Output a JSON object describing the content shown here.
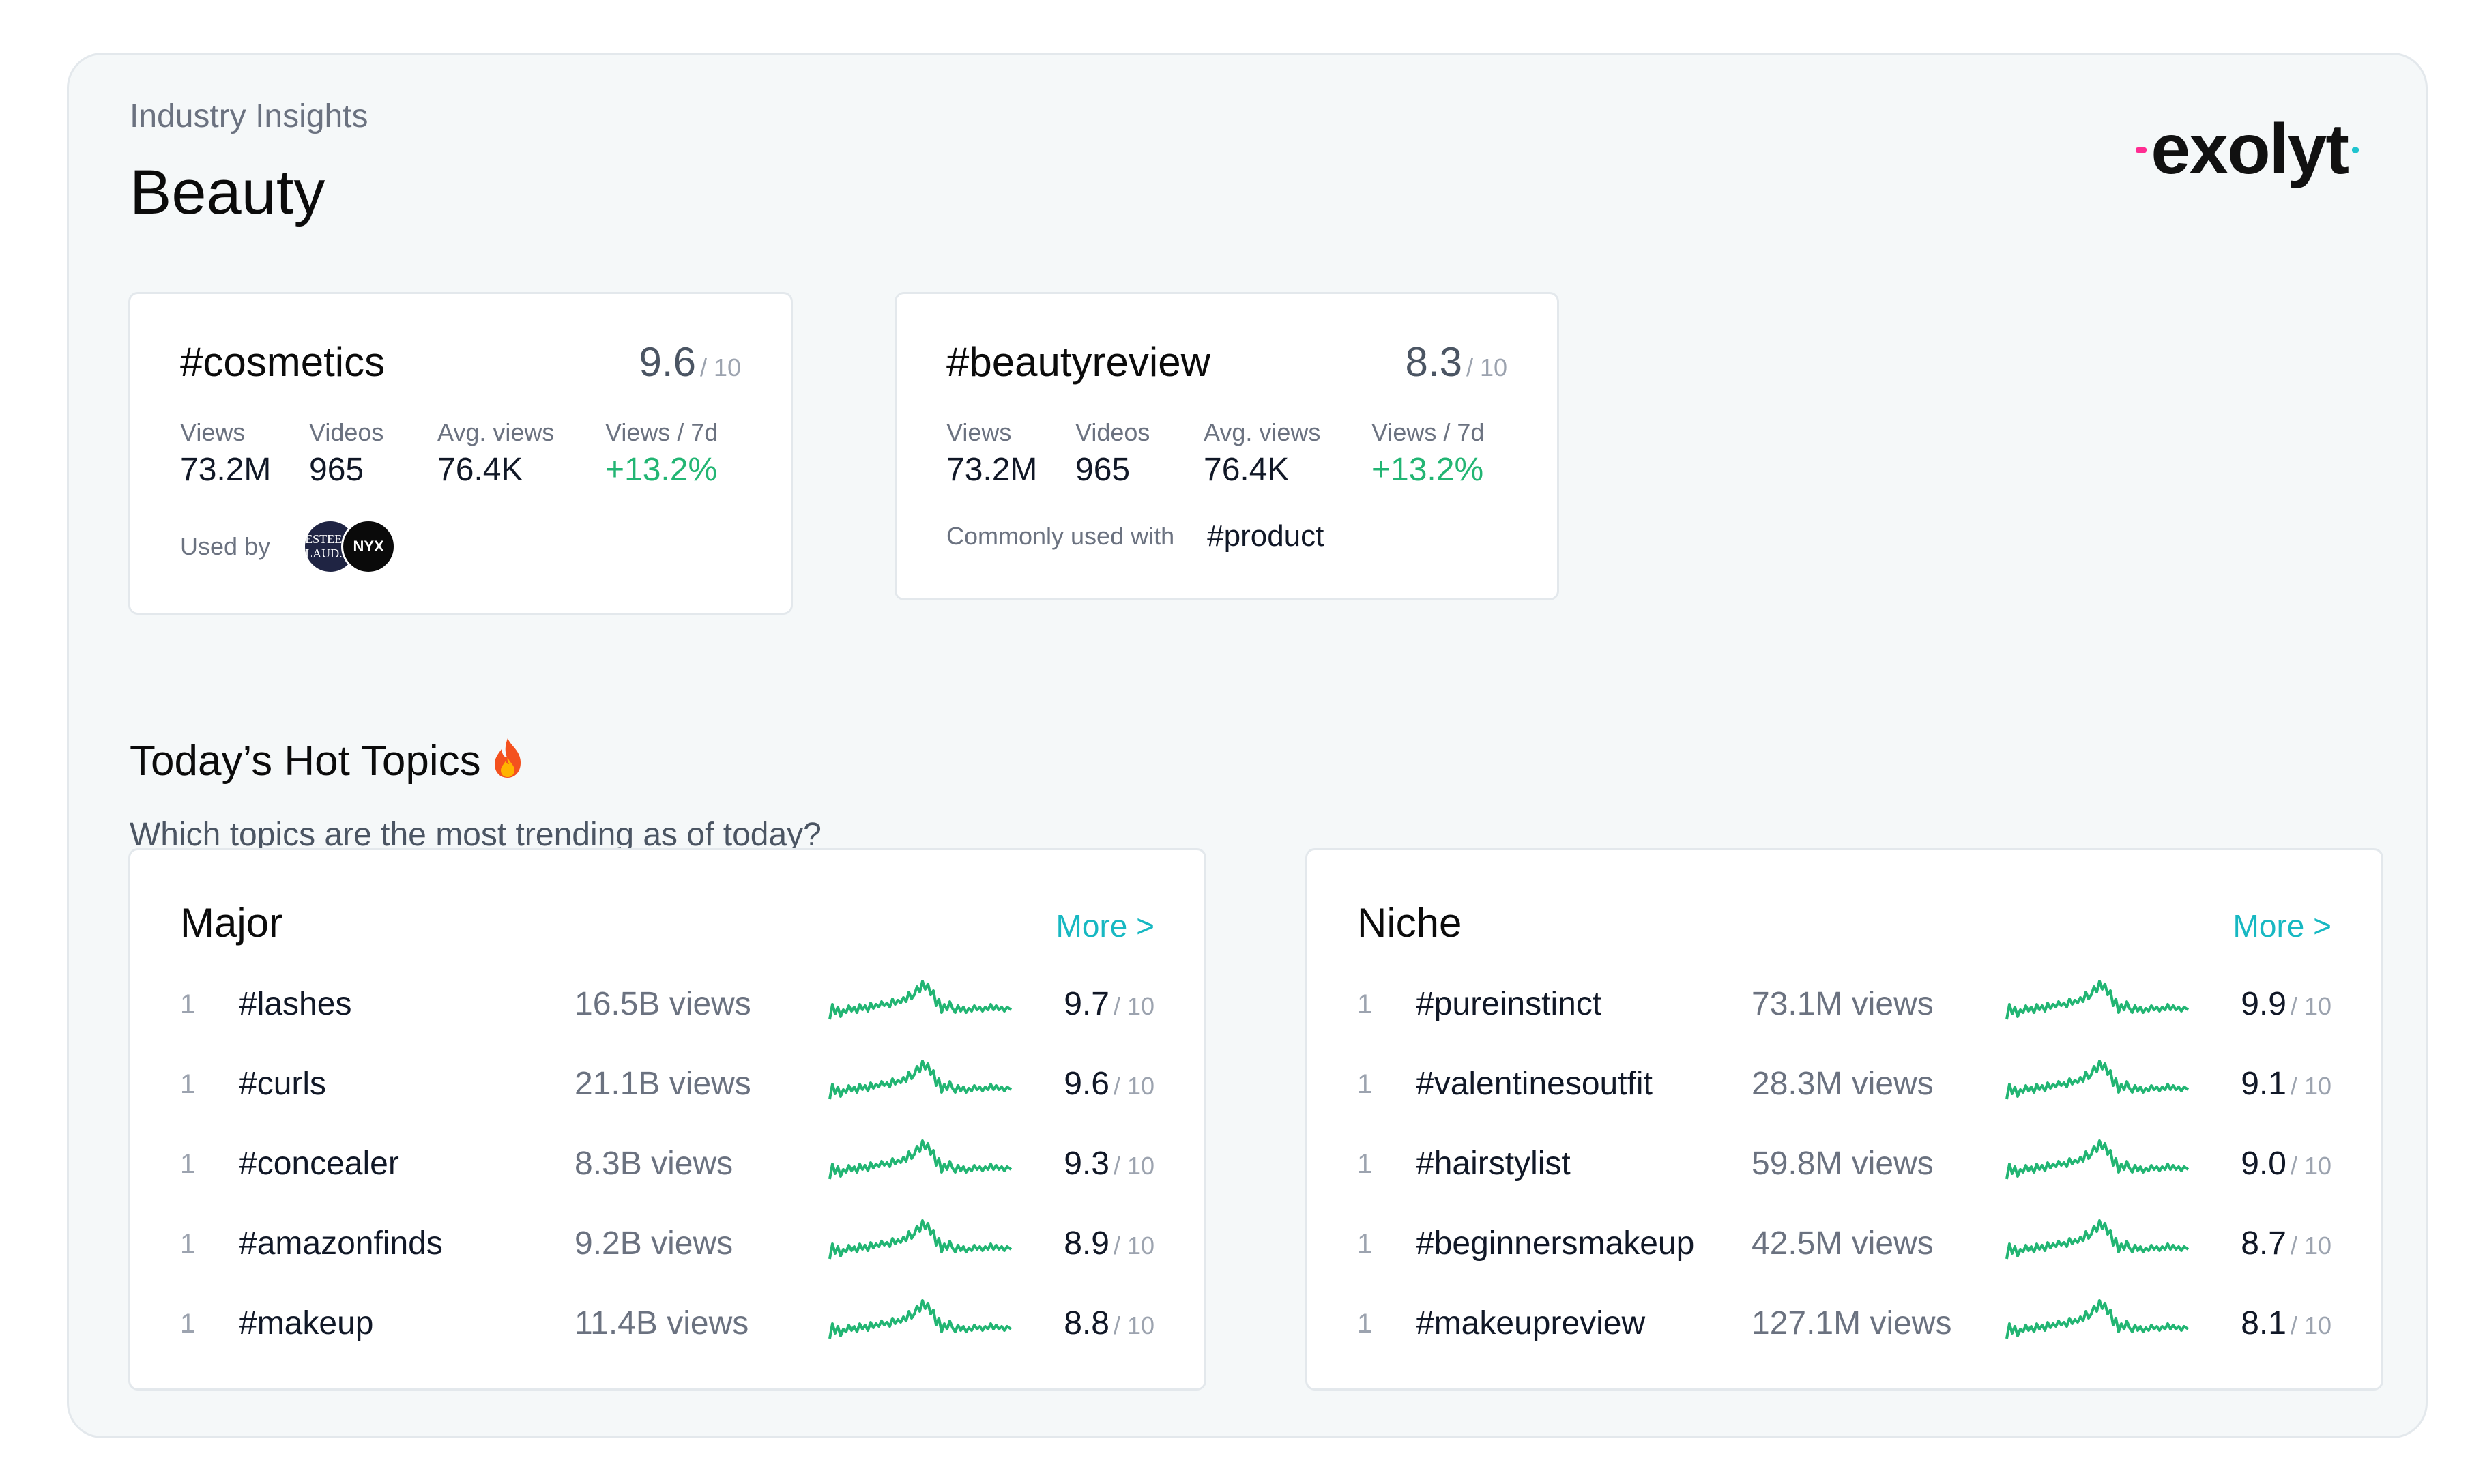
{
  "header": {
    "eyebrow": "Industry Insights",
    "title": "Beauty",
    "logo_text": "exolyt"
  },
  "featured": [
    {
      "tag": "#cosmetics",
      "score": "9.6",
      "score_den": "/ 10",
      "metrics": [
        {
          "label": "Views",
          "value": "73.2M"
        },
        {
          "label": "Videos",
          "value": "965"
        },
        {
          "label": "Avg. views",
          "value": "76.4K"
        },
        {
          "label": "Views / 7d",
          "value": "+13.2%"
        }
      ],
      "used_by_label": "Used by",
      "used_by": [
        {
          "name": "ESTEE LAUDER",
          "short": "ESTĒE LAUD."
        },
        {
          "name": "NYX",
          "short": "NYX"
        }
      ]
    },
    {
      "tag": "#beautyreview",
      "score": "8.3",
      "score_den": "/ 10",
      "metrics": [
        {
          "label": "Views",
          "value": "73.2M"
        },
        {
          "label": "Videos",
          "value": "965"
        },
        {
          "label": "Avg. views",
          "value": "76.4K"
        },
        {
          "label": "Views / 7d",
          "value": "+13.2%"
        }
      ],
      "common_label": "Commonly used with",
      "common_tag": "#product"
    }
  ],
  "hot_topics": {
    "title": "Today’s Hot Topics",
    "subtitle": "Which topics are the most trending as of today?",
    "icon": "flame-icon"
  },
  "major": {
    "title": "Major",
    "more": "More >",
    "rows": [
      {
        "rank": "1",
        "tag": "#lashes",
        "views": "16.5B views",
        "score": "9.7",
        "den": "/ 10"
      },
      {
        "rank": "1",
        "tag": "#curls",
        "views": "21.1B views",
        "score": "9.6",
        "den": "/ 10"
      },
      {
        "rank": "1",
        "tag": "#concealer",
        "views": "8.3B views",
        "score": "9.3",
        "den": "/ 10"
      },
      {
        "rank": "1",
        "tag": "#amazonfinds",
        "views": "9.2B views",
        "score": "8.9",
        "den": "/ 10"
      },
      {
        "rank": "1",
        "tag": "#makeup",
        "views": "11.4B views",
        "score": "8.8",
        "den": "/ 10"
      }
    ]
  },
  "niche": {
    "title": "Niche",
    "more": "More >",
    "rows": [
      {
        "rank": "1",
        "tag": "#pureinstinct",
        "views": "73.1M views",
        "score": "9.9",
        "den": "/ 10"
      },
      {
        "rank": "1",
        "tag": "#valentinesoutfit",
        "views": "28.3M views",
        "score": "9.1",
        "den": "/ 10"
      },
      {
        "rank": "1",
        "tag": "#hairstylist",
        "views": "59.8M views",
        "score": "9.0",
        "den": "/ 10"
      },
      {
        "rank": "1",
        "tag": "#beginnersmakeup",
        "views": "42.5M views",
        "score": "8.7",
        "den": "/ 10"
      },
      {
        "rank": "1",
        "tag": "#makeupreview",
        "views": "127.1M views",
        "score": "8.1",
        "den": "/ 10"
      }
    ]
  },
  "colors": {
    "accent": "#17b8c2",
    "positive": "#22b573",
    "logo_pink": "#ff2d92",
    "logo_teal": "#20c4cf"
  }
}
